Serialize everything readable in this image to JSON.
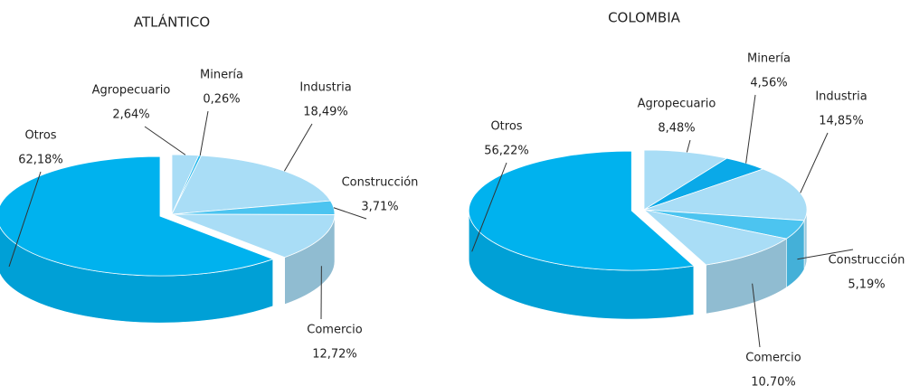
{
  "chart_data": [
    {
      "type": "pie",
      "title": "ATLÁNTICO",
      "categories": [
        "Agropecuario",
        "Minería",
        "Industria",
        "Construcción",
        "Comercio",
        "Otros"
      ],
      "values": [
        2.64,
        0.26,
        18.49,
        3.71,
        12.72,
        62.18
      ],
      "value_labels": [
        "2,64%",
        "0,26%",
        "18,49%",
        "3,71%",
        "12,72%",
        "62,18%"
      ],
      "colors": [
        "#a9ddf6",
        "#18b4ec",
        "#a9ddf6",
        "#4cc4f0",
        "#a9ddf6",
        "#00b2ee"
      ]
    },
    {
      "type": "pie",
      "title": "COLOMBIA",
      "categories": [
        "Agropecuario",
        "Minería",
        "Industria",
        "Construcción",
        "Comercio",
        "Otros"
      ],
      "values": [
        8.48,
        4.56,
        14.85,
        5.19,
        10.7,
        56.22
      ],
      "value_labels": [
        "8,48%",
        "4,56%",
        "14,85%",
        "5,19%",
        "10,70%",
        "56,22%"
      ],
      "colors": [
        "#a9ddf6",
        "#0aa9e8",
        "#a9ddf6",
        "#4cc4f0",
        "#a9ddf6",
        "#00b2ee"
      ]
    }
  ]
}
